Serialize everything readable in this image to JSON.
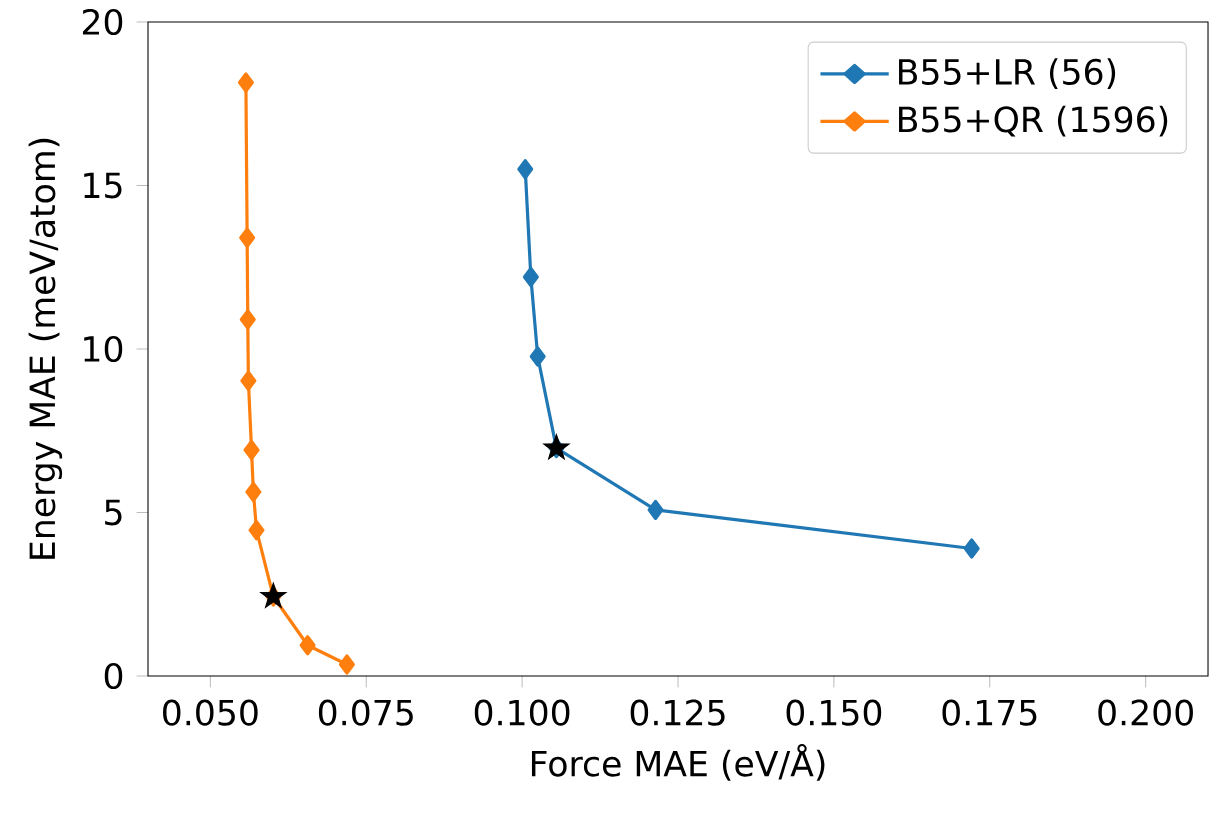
{
  "chart_data": {
    "type": "line",
    "xlabel": "Force MAE (eV/Å)",
    "ylabel": "Energy MAE (meV/atom)",
    "marker": "diamond",
    "legend": "top right",
    "grid": false,
    "xlim": [
      0.04,
      0.21
    ],
    "ylim": [
      0,
      20
    ],
    "xticks": [
      {
        "value": 0.05,
        "label": "0.050"
      },
      {
        "value": 0.075,
        "label": "0.075"
      },
      {
        "value": 0.1,
        "label": "0.100"
      },
      {
        "value": 0.125,
        "label": "0.125"
      },
      {
        "value": 0.15,
        "label": "0.150"
      },
      {
        "value": 0.175,
        "label": "0.175"
      },
      {
        "value": 0.2,
        "label": "0.200"
      }
    ],
    "yticks": [
      0,
      5,
      10,
      15,
      20
    ],
    "series": [
      {
        "name": "B55+LR (56)",
        "color": "#1f77b4",
        "x": [
          0.1005,
          0.1014,
          0.1025,
          0.1055,
          0.1214,
          0.1721
        ],
        "values": [
          15.5,
          12.2,
          9.77,
          6.97,
          5.08,
          3.9
        ]
      },
      {
        "name": "B55+QR (1596)",
        "color": "#ff7f0e",
        "x": [
          0.0557,
          0.0559,
          0.056,
          0.0561,
          0.0566,
          0.0569,
          0.0574,
          0.0601,
          0.0656,
          0.0719
        ],
        "values": [
          18.15,
          13.4,
          10.9,
          9.03,
          6.91,
          5.63,
          4.46,
          2.43,
          0.94,
          0.35
        ]
      },
      {
        "type": "scatter",
        "marker": "star",
        "color": "#000000",
        "x": [
          0.1055,
          0.0601
        ],
        "values": [
          6.97,
          2.43
        ]
      }
    ]
  }
}
